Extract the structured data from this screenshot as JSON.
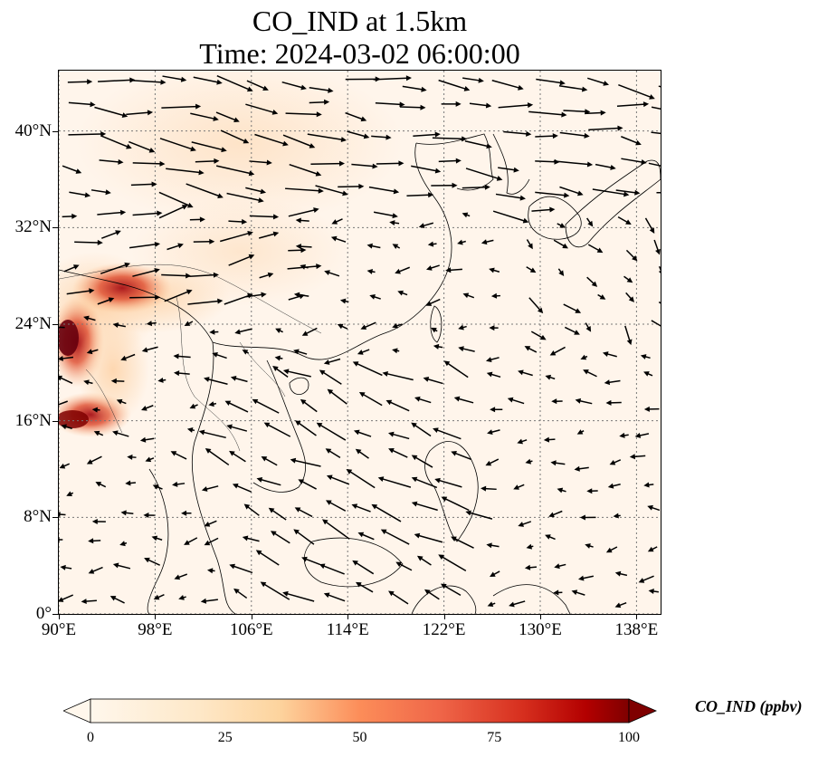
{
  "title_line1": "CO_IND at 1.5km",
  "title_line2": "Time: 2024-03-02 06:00:00",
  "map": {
    "extent": {
      "lon": [
        90,
        140
      ],
      "lat": [
        0,
        45
      ]
    },
    "lat_ticks": [
      {
        "value": 0,
        "label": "0°"
      },
      {
        "value": 8,
        "label": "8°N"
      },
      {
        "value": 16,
        "label": "16°N"
      },
      {
        "value": 24,
        "label": "24°N"
      },
      {
        "value": 32,
        "label": "32°N"
      },
      {
        "value": 40,
        "label": "40°N"
      }
    ],
    "lon_ticks": [
      {
        "value": 90,
        "label": "90°E"
      },
      {
        "value": 98,
        "label": "98°E"
      },
      {
        "value": 106,
        "label": "106°E"
      },
      {
        "value": 114,
        "label": "114°E"
      },
      {
        "value": 122,
        "label": "122°E"
      },
      {
        "value": 130,
        "label": "130°E"
      },
      {
        "value": 138,
        "label": "138°E"
      }
    ],
    "gridlines": true,
    "background_color": "#fff5eb",
    "high_concentration_color": "#b2182b"
  },
  "colorbar": {
    "label": "CO_IND (ppbv)",
    "min": 0,
    "max": 100,
    "ticks": [
      {
        "value": 0,
        "label": "0"
      },
      {
        "value": 25,
        "label": "25"
      },
      {
        "value": 50,
        "label": "50"
      },
      {
        "value": 75,
        "label": "75"
      },
      {
        "value": 100,
        "label": "100"
      }
    ],
    "colormap": "OrRd",
    "extend": "both"
  }
}
